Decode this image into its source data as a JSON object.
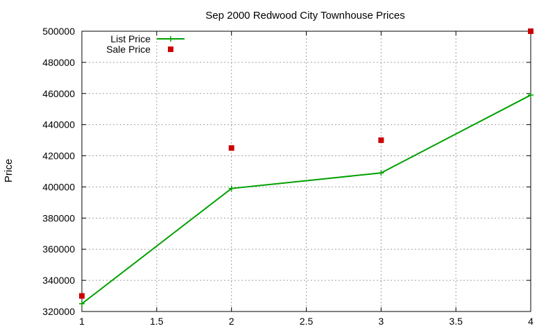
{
  "chart_data": {
    "type": "line",
    "title": "Sep 2000 Redwood City Townhouse Prices",
    "xlabel": "",
    "ylabel": "Price",
    "xlim": [
      1,
      4
    ],
    "ylim": [
      320000,
      500000
    ],
    "x_ticks": [
      1,
      1.5,
      2,
      2.5,
      3,
      3.5,
      4
    ],
    "x_tick_labels": [
      "1",
      "1.5",
      "2",
      "2.5",
      "3",
      "3.5",
      "4"
    ],
    "y_ticks": [
      320000,
      340000,
      360000,
      380000,
      400000,
      420000,
      440000,
      460000,
      480000,
      500000
    ],
    "y_tick_labels": [
      "320000",
      "340000",
      "360000",
      "380000",
      "400000",
      "420000",
      "440000",
      "460000",
      "480000",
      "500000"
    ],
    "grid": true,
    "legend_position": "top-left",
    "series": [
      {
        "name": "List Price",
        "style": "linespoints",
        "marker": "plus",
        "color": "#00a000",
        "x": [
          1,
          2,
          3,
          4
        ],
        "y": [
          325000,
          399000,
          409000,
          459000
        ]
      },
      {
        "name": "Sale Price",
        "style": "points",
        "marker": "square",
        "color": "#cc0000",
        "x": [
          1,
          2,
          3,
          4
        ],
        "y": [
          330000,
          425000,
          430000,
          500000
        ]
      }
    ]
  }
}
